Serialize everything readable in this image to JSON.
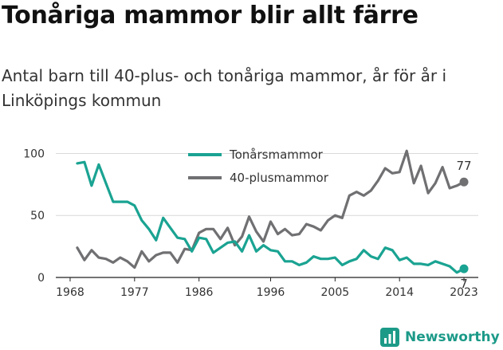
{
  "header": {
    "title": "Tonåriga mammor blir allt färre",
    "subtitle": "Antal barn till 40-plus- och tonåriga mammor, år för år i Linköpings kommun"
  },
  "brand": {
    "name": "Newsworthy",
    "color": "#1c9a88"
  },
  "chart_data": {
    "type": "line",
    "x_ticks": [
      1968,
      1977,
      1986,
      1996,
      2005,
      2014,
      2023
    ],
    "xlim": [
      1966,
      2025
    ],
    "y_ticks": [
      0,
      50,
      100
    ],
    "ylim": [
      0,
      108
    ],
    "legend_position": "top-center",
    "x": [
      1969,
      1970,
      1971,
      1972,
      1973,
      1974,
      1975,
      1976,
      1977,
      1978,
      1979,
      1980,
      1981,
      1982,
      1983,
      1984,
      1985,
      1986,
      1987,
      1988,
      1989,
      1990,
      1991,
      1992,
      1993,
      1994,
      1995,
      1996,
      1997,
      1998,
      1999,
      2000,
      2001,
      2002,
      2003,
      2004,
      2005,
      2006,
      2007,
      2008,
      2009,
      2010,
      2011,
      2012,
      2013,
      2014,
      2015,
      2016,
      2017,
      2018,
      2019,
      2020,
      2021,
      2022,
      2023
    ],
    "series": [
      {
        "name": "Tonårsmammor",
        "color": "#1aa392",
        "values": [
          92,
          93,
          74,
          91,
          76,
          61,
          61,
          61,
          58,
          46,
          39,
          30,
          48,
          40,
          32,
          31,
          21,
          32,
          31,
          20,
          24,
          28,
          29,
          21,
          34,
          21,
          26,
          22,
          21,
          13,
          13,
          10,
          12,
          17,
          15,
          15,
          16,
          10,
          13,
          15,
          22,
          17,
          15,
          24,
          22,
          14,
          16,
          11,
          11,
          10,
          13,
          11,
          9,
          4,
          7
        ],
        "end_label": "7"
      },
      {
        "name": "40-plusmammor",
        "color": "#707073",
        "values": [
          24,
          14,
          22,
          16,
          15,
          12,
          16,
          13,
          8,
          21,
          13,
          18,
          20,
          20,
          12,
          23,
          22,
          36,
          39,
          39,
          31,
          40,
          26,
          33,
          49,
          37,
          29,
          45,
          35,
          39,
          34,
          35,
          43,
          41,
          38,
          46,
          50,
          48,
          66,
          69,
          66,
          70,
          78,
          88,
          84,
          85,
          102,
          76,
          90,
          68,
          76,
          89,
          72,
          74,
          77
        ],
        "end_label": "77"
      }
    ]
  }
}
